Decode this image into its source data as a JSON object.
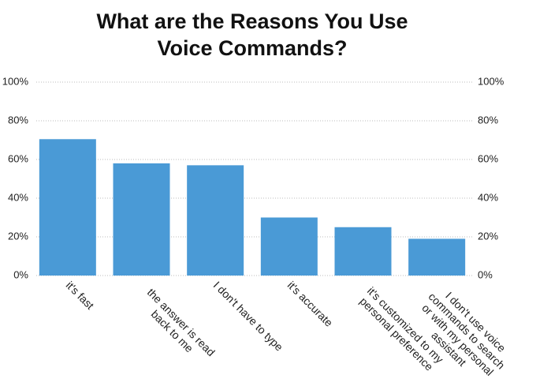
{
  "chart_data": {
    "type": "bar",
    "title": "What are the Reasons You Use Voice Commands?",
    "categories": [
      "it's fast",
      "the answer is read back to me",
      "I don't have to type",
      "it's accurate",
      "it's customized to my personal preference",
      "I don't use voice commands to search or with my personal assistant"
    ],
    "values": [
      70.5,
      58,
      57,
      30,
      25,
      19
    ],
    "color": "#4a9ad6",
    "ylim": [
      0,
      100
    ],
    "yticks": [
      {
        "value": 0,
        "label": "0%"
      },
      {
        "value": 20,
        "label": "20%"
      },
      {
        "value": 40,
        "label": "40%"
      },
      {
        "value": 60,
        "label": "60%"
      },
      {
        "value": 80,
        "label": "80%"
      },
      {
        "value": 100,
        "label": "100%"
      }
    ],
    "grid": true
  }
}
